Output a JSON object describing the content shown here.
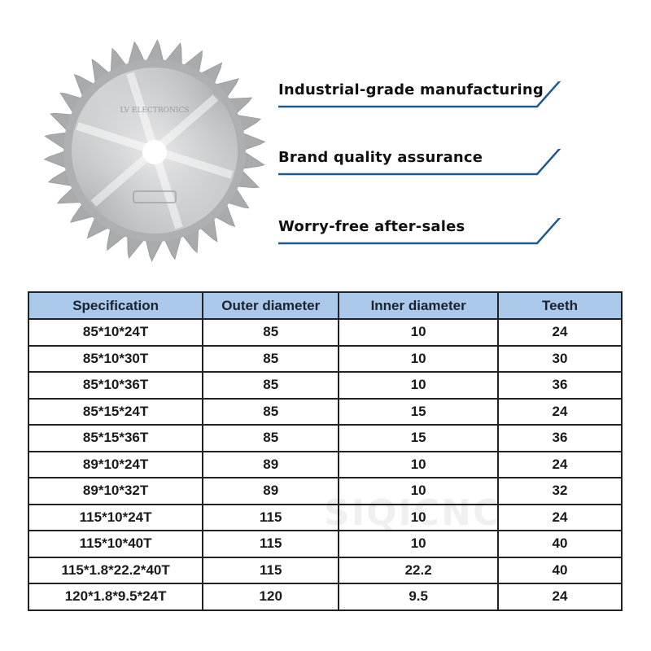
{
  "product": {
    "blade_image": "saw-blade-image",
    "blade_engraving": "LV ELECTRONICS"
  },
  "features": [
    {
      "label": "Industrial-grade manufacturing"
    },
    {
      "label": "Brand quality assurance"
    },
    {
      "label": "Worry-free after-sales"
    }
  ],
  "colors": {
    "accent_line": "#1f5a8c",
    "table_header_bg": "#a9c8ea",
    "table_border": "#222222"
  },
  "spec_table": {
    "headers": [
      "Specification",
      "Outer diameter",
      "Inner diameter",
      "Teeth"
    ],
    "rows": [
      [
        "85*10*24T",
        "85",
        "10",
        "24"
      ],
      [
        "85*10*30T",
        "85",
        "10",
        "30"
      ],
      [
        "85*10*36T",
        "85",
        "10",
        "36"
      ],
      [
        "85*15*24T",
        "85",
        "15",
        "24"
      ],
      [
        "85*15*36T",
        "85",
        "15",
        "36"
      ],
      [
        "89*10*24T",
        "89",
        "10",
        "24"
      ],
      [
        "89*10*32T",
        "89",
        "10",
        "32"
      ],
      [
        "115*10*24T",
        "115",
        "10",
        "24"
      ],
      [
        "115*10*40T",
        "115",
        "10",
        "40"
      ],
      [
        "115*1.8*22.2*40T",
        "115",
        "22.2",
        "40"
      ],
      [
        "120*1.8*9.5*24T",
        "120",
        "9.5",
        "24"
      ]
    ]
  },
  "watermark": "SIQICNC"
}
